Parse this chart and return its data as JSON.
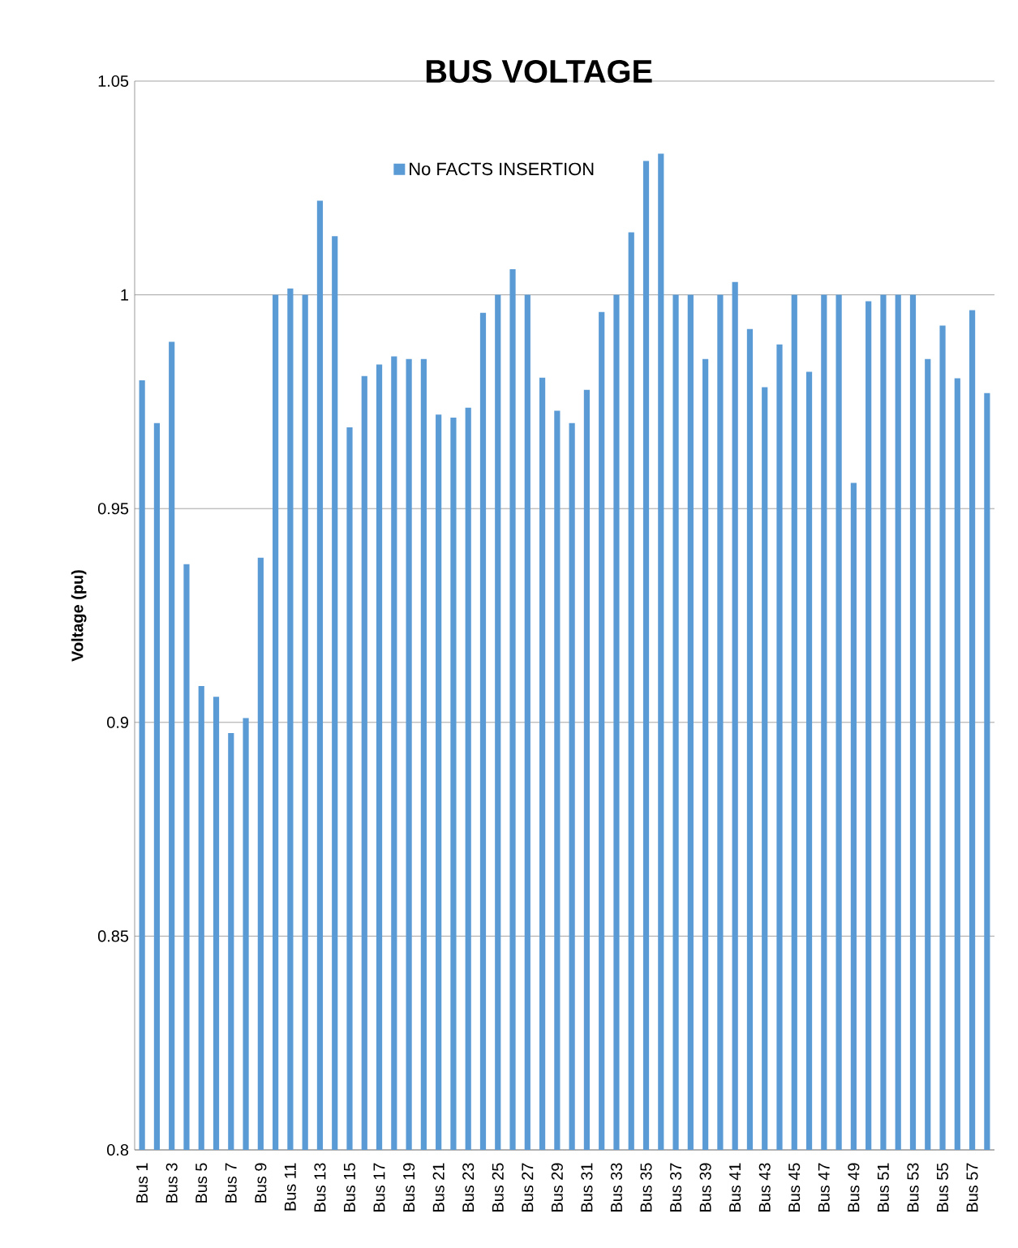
{
  "chart_data": {
    "type": "bar",
    "title": "BUS VOLTAGE",
    "ylabel": "Voltage (pu)",
    "categories": [
      "Bus 1",
      null,
      "Bus 3",
      null,
      "Bus 5",
      null,
      "Bus 7",
      null,
      "Bus 9",
      null,
      "Bus 11",
      null,
      "Bus 13",
      null,
      "Bus 15",
      null,
      "Bus 17",
      null,
      "Bus 19",
      null,
      "Bus 21",
      null,
      "Bus 23",
      null,
      "Bus 25",
      null,
      "Bus 27",
      null,
      "Bus 29",
      null,
      "Bus 31",
      null,
      "Bus 33",
      null,
      "Bus 35",
      null,
      "Bus 37",
      null,
      "Bus 39",
      null,
      "Bus 41",
      null,
      "Bus 43",
      null,
      "Bus 45",
      null,
      "Bus 47",
      null,
      "Bus 49",
      null,
      "Bus 51",
      null,
      "Bus 53",
      null,
      "Bus 55",
      null,
      "Bus 57",
      null
    ],
    "series": [
      {
        "name": "No FACTS INSERTION",
        "color": "#5b9bd5",
        "values": [
          0.98,
          0.97,
          0.989,
          0.937,
          0.9085,
          0.906,
          0.8975,
          0.901,
          0.9385,
          1.0,
          1.0015,
          1.0,
          1.022,
          1.0137,
          0.969,
          0.981,
          0.9837,
          0.9856,
          0.985,
          0.985,
          0.972,
          0.9713,
          0.9736,
          0.9958,
          1.0,
          1.006,
          1.0,
          0.9806,
          0.9729,
          0.97,
          0.9778,
          0.996,
          1.0,
          1.0146,
          1.0313,
          1.033,
          1.0,
          1.0,
          0.985,
          1.0,
          1.003,
          0.992,
          0.9784,
          0.9884,
          1.0,
          0.982,
          1.0,
          1.0,
          0.956,
          0.9985,
          1.0,
          1.0,
          1.0,
          0.985,
          0.9928,
          0.9805,
          0.9964,
          0.977
        ]
      }
    ],
    "ylim": [
      0.8,
      1.05
    ],
    "yticks": [
      0.8,
      0.85,
      0.9,
      0.95,
      1,
      1.05
    ],
    "grid": "y",
    "legend": "top"
  }
}
